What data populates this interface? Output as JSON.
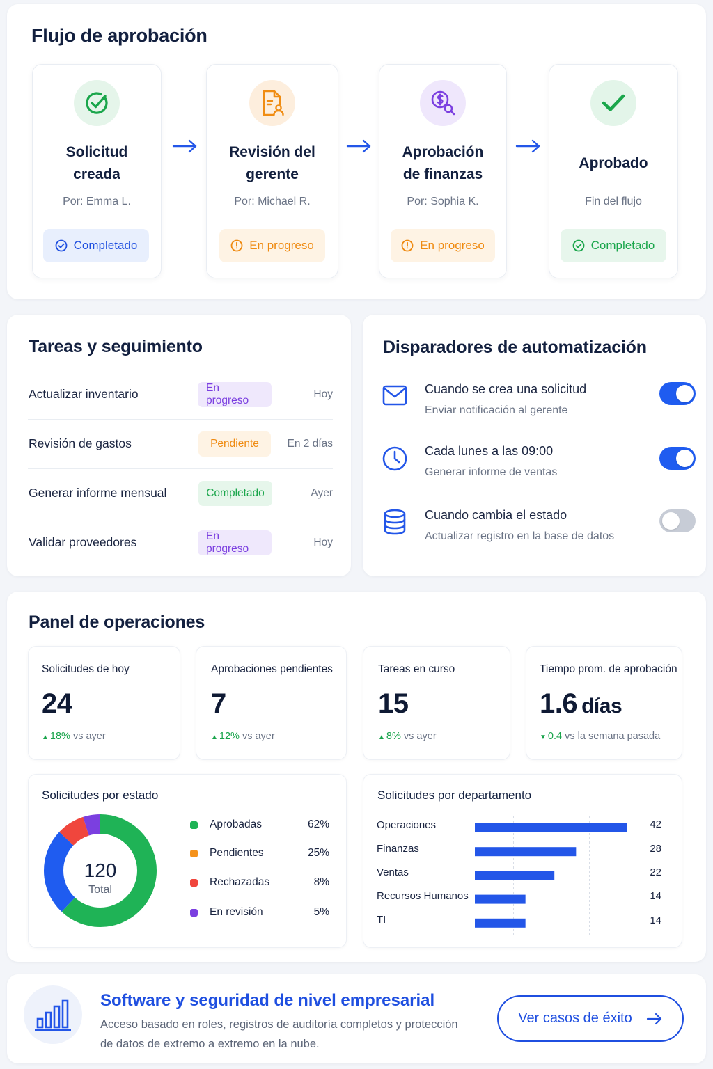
{
  "colors": {
    "accent": "#2356e8",
    "green": "#1aa64b",
    "orange": "#f08c12",
    "purple": "#7b3fe0",
    "red": "#f0463d",
    "toggle_off": "#c7ccd6"
  },
  "workflow": {
    "title": "Flujo de aprobación",
    "steps": [
      {
        "title": "Solicitud\ncreada",
        "subtitle": "Por: Emma L.",
        "badge": "Completado",
        "icon": "check-circle-icon"
      },
      {
        "title": "Revisión del\ngerente",
        "subtitle": "Por: Michael R.",
        "badge": "En progreso",
        "icon": "document-user-icon"
      },
      {
        "title": "Aprobación\nde finanzas",
        "subtitle": "Por: Sophia K.",
        "badge": "En progreso",
        "icon": "dollar-search-icon"
      },
      {
        "title": "Aprobado",
        "subtitle": "Fin del flujo",
        "badge": "Completado",
        "icon": "checkmark-icon"
      }
    ]
  },
  "tasks": {
    "title": "Tareas y seguimiento",
    "rows": [
      {
        "name": "Actualizar inventario",
        "status": "En progreso",
        "when": "Hoy"
      },
      {
        "name": "Revisión de gastos",
        "status": "Pendiente",
        "when": "En 2 días"
      },
      {
        "name": "Generar informe mensual",
        "status": "Completado",
        "when": "Ayer"
      },
      {
        "name": "Validar proveedores",
        "status": "En progreso",
        "when": "Hoy"
      }
    ]
  },
  "automation": {
    "title": "Disparadores de automatización",
    "triggers": [
      {
        "title": "Cuando se crea una solicitud",
        "subtitle": "Enviar notificación al gerente",
        "enabled": true,
        "icon": "mail-icon"
      },
      {
        "title": "Cada lunes a las 09:00",
        "subtitle": "Generar informe de ventas",
        "enabled": true,
        "icon": "clock-icon"
      },
      {
        "title": "Cuando cambia el estado",
        "subtitle": "Actualizar registro en la base de datos",
        "enabled": false,
        "icon": "database-icon"
      }
    ]
  },
  "operations": {
    "title": "Panel de operaciones",
    "kpis": [
      {
        "label": "Solicitudes de hoy",
        "value": "24",
        "unit": "",
        "delta": "18%",
        "delta_dir": "up",
        "delta_text": "vs ayer"
      },
      {
        "label": "Aprobaciones pendientes",
        "value": "7",
        "unit": "",
        "delta": "12%",
        "delta_dir": "up",
        "delta_text": "vs ayer"
      },
      {
        "label": "Tareas en curso",
        "value": "15",
        "unit": "",
        "delta": "8%",
        "delta_dir": "up",
        "delta_text": "vs ayer"
      },
      {
        "label": "Tiempo prom. de aprobación",
        "value": "1.6",
        "unit": "días",
        "delta": "0.4",
        "delta_dir": "down",
        "delta_text": "vs la semana pasada"
      }
    ]
  },
  "chart_data": [
    {
      "type": "pie",
      "title": "Solicitudes por estado",
      "center_value": "120",
      "center_label": "Total",
      "categories": [
        "Aprobadas",
        "Pendientes",
        "Rechazadas",
        "En revisión"
      ],
      "values": [
        62,
        25,
        8,
        5
      ],
      "labels": [
        "62%",
        "25%",
        "8%",
        "5%"
      ],
      "colors": [
        "#1fb356",
        "#f5921b",
        "#f0463d",
        "#7b3fe0"
      ],
      "slice_colors": [
        "#1fb356",
        "#1f5cf0",
        "#f0463d",
        "#7b3fe0"
      ]
    },
    {
      "type": "bar",
      "orientation": "horizontal",
      "title": "Solicitudes por departamento",
      "categories": [
        "Operaciones",
        "Finanzas",
        "Ventas",
        "Recursos Humanos",
        "TI"
      ],
      "values": [
        42,
        28,
        22,
        14,
        14
      ],
      "xlim": [
        0,
        42
      ],
      "grid": true,
      "color": "#2356e8"
    }
  ],
  "footer": {
    "title": "Software y seguridad de nivel empresarial",
    "text": "Acceso basado en roles, registros de auditoría completos y protección de datos de extremo a extremo en la nube.",
    "button": "Ver casos de éxito",
    "icon": "bar-chart-icon"
  }
}
